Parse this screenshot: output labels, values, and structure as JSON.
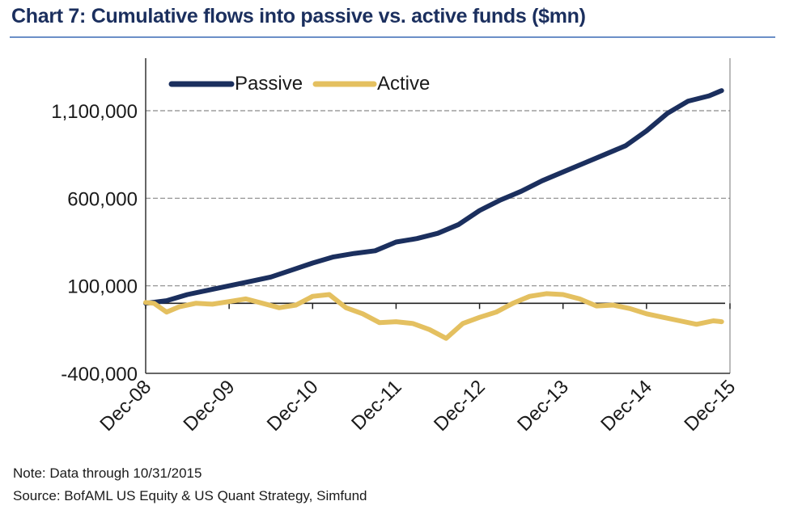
{
  "title": "Chart 7: Cumulative flows into passive vs. active funds ($mn)",
  "notes": {
    "note": "Note: Data through 10/31/2015",
    "source": "Source: BofAML US Equity & US Quant Strategy, Simfund"
  },
  "colors": {
    "passive": "#1b2f5e",
    "active": "#e4c060",
    "grid": "#8a8a8a",
    "rule": "#6b8fc7"
  },
  "chart_data": {
    "type": "line",
    "title": "Chart 7: Cumulative flows into passive vs. active funds ($mn)",
    "xlabel": "",
    "ylabel": "",
    "x_tick_labels": [
      "Dec-08",
      "Dec-09",
      "Dec-10",
      "Dec-11",
      "Dec-12",
      "Dec-13",
      "Dec-14",
      "Dec-15"
    ],
    "y_tick_labels": [
      "1,100,000",
      "600,000",
      "100,000",
      "-400,000"
    ],
    "y_ticks": [
      1100000,
      600000,
      100000,
      -400000
    ],
    "ylim": [
      -400000,
      1450000
    ],
    "grid": "horizontal dashed",
    "legend": "top-left",
    "series": [
      {
        "name": "Passive",
        "x": [
          0,
          0.25,
          0.5,
          0.75,
          1,
          1.25,
          1.5,
          1.75,
          2,
          2.25,
          2.5,
          2.75,
          3,
          3.25,
          3.5,
          3.75,
          4,
          4.25,
          4.5,
          4.75,
          5,
          5.25,
          5.5,
          5.75,
          6,
          6.25,
          6.5,
          6.75,
          6.9
        ],
        "values": [
          0,
          15000,
          50000,
          75000,
          100000,
          125000,
          150000,
          190000,
          230000,
          265000,
          285000,
          300000,
          350000,
          370000,
          400000,
          450000,
          530000,
          590000,
          640000,
          700000,
          750000,
          800000,
          850000,
          900000,
          985000,
          1085000,
          1155000,
          1185000,
          1215000
        ]
      },
      {
        "name": "Active",
        "x": [
          0,
          0.1,
          0.25,
          0.4,
          0.6,
          0.8,
          1,
          1.2,
          1.4,
          1.6,
          1.8,
          2,
          2.2,
          2.4,
          2.6,
          2.8,
          3,
          3.2,
          3.4,
          3.6,
          3.8,
          4,
          4.2,
          4.4,
          4.6,
          4.8,
          5,
          5.2,
          5.4,
          5.6,
          5.8,
          6,
          6.2,
          6.4,
          6.6,
          6.8,
          6.9
        ],
        "values": [
          5000,
          0,
          -50000,
          -20000,
          0,
          -5000,
          10000,
          25000,
          0,
          -25000,
          -10000,
          40000,
          50000,
          -25000,
          -60000,
          -110000,
          -105000,
          -115000,
          -150000,
          -200000,
          -115000,
          -80000,
          -50000,
          0,
          40000,
          55000,
          50000,
          25000,
          -15000,
          -10000,
          -30000,
          -60000,
          -80000,
          -100000,
          -120000,
          -100000,
          -105000
        ]
      }
    ]
  }
}
